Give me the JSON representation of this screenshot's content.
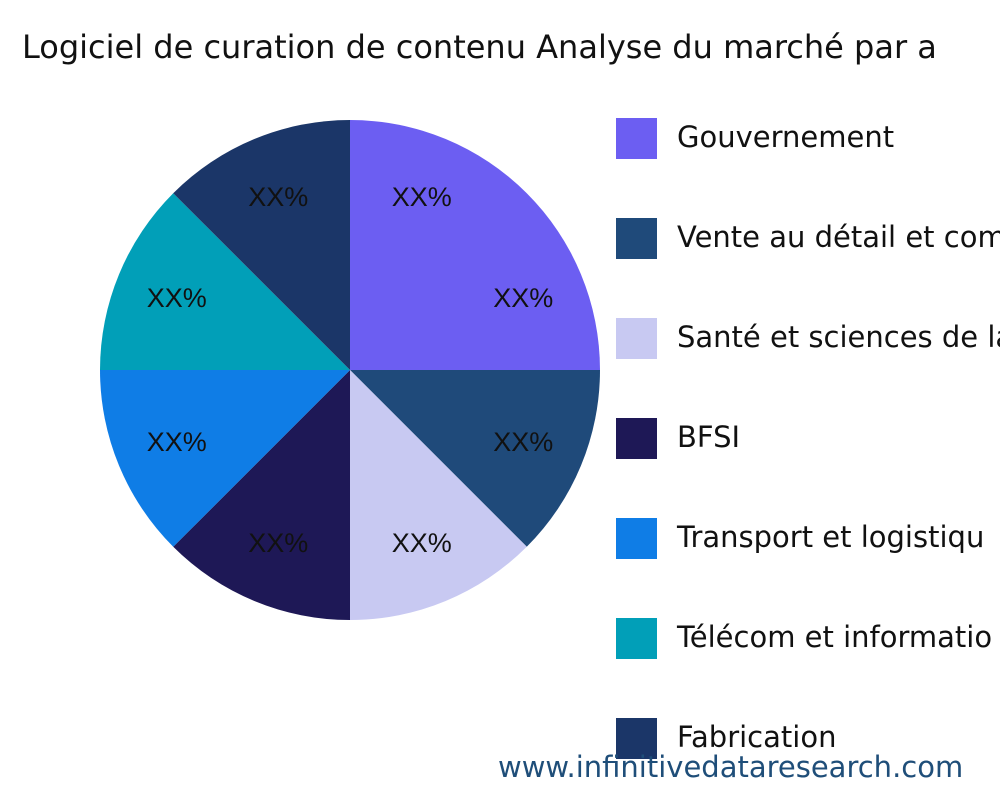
{
  "chart_data": {
    "type": "pie",
    "title": "Logiciel de curation de contenu Analyse du marché par a",
    "legend_placement": "right",
    "slices": [
      {
        "name": "Gouvernement",
        "value": 25,
        "label": "XX%",
        "label2": "XX%",
        "color": "#6c5ef2"
      },
      {
        "name": "Vente au détail et com",
        "value": 12.5,
        "label": "XX%",
        "color": "#1f4a7a"
      },
      {
        "name": "Santé et sciences de la",
        "value": 12.5,
        "label": "XX%",
        "color": "#c8c9f2"
      },
      {
        "name": "BFSI",
        "value": 12.5,
        "label": "XX%",
        "color": "#1e1856"
      },
      {
        "name": "Transport et logistiqu",
        "value": 12.5,
        "label": "XX%",
        "color": "#0f7de6"
      },
      {
        "name": "Télécom et informatio",
        "value": 12.5,
        "label": "XX%",
        "color": "#019fb8"
      },
      {
        "name": "Fabrication",
        "value": 12.5,
        "label": "XX%",
        "color": "#1b3668"
      }
    ]
  },
  "footer": {
    "url": "www.infinitivedataresearch.com"
  }
}
